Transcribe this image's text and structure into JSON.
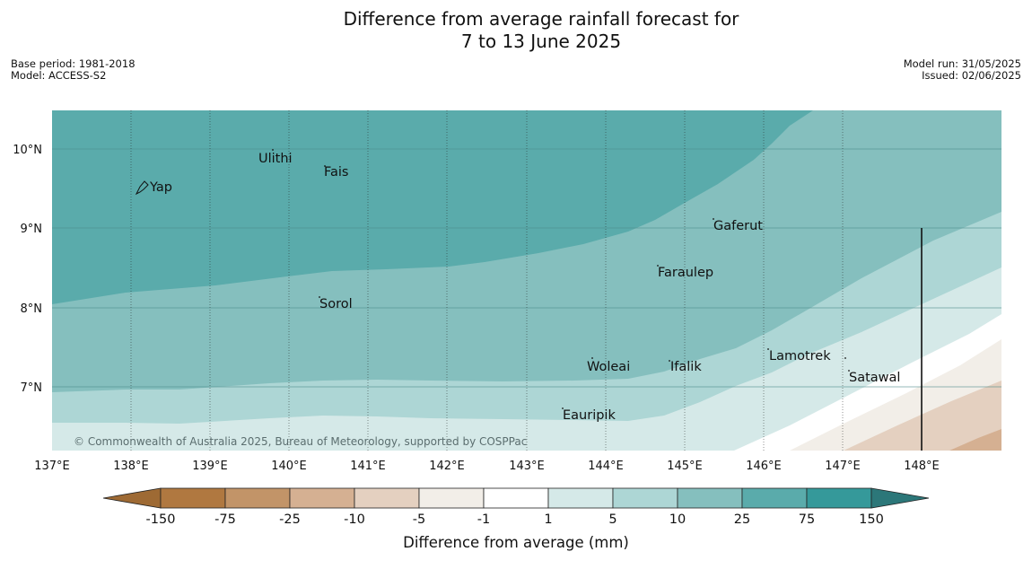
{
  "title": {
    "line1": "Difference from average rainfall forecast for",
    "line2": "7 to 13 June 2025"
  },
  "meta_left": {
    "base_period": "Base period: 1981-2018",
    "model": "Model: ACCESS-S2"
  },
  "meta_right": {
    "model_run": "Model run: 31/05/2025",
    "issued": "Issued: 02/06/2025"
  },
  "map": {
    "lon_labels": [
      "137°E",
      "138°E",
      "139°E",
      "140°E",
      "141°E",
      "142°E",
      "143°E",
      "144°E",
      "145°E",
      "146°E",
      "147°E",
      "148°E"
    ],
    "lat_labels": [
      "10°N",
      "9°N",
      "8°N",
      "7°N"
    ],
    "places": [
      {
        "name": "Yap"
      },
      {
        "name": "Ulithi"
      },
      {
        "name": "Fais"
      },
      {
        "name": "Gaferut"
      },
      {
        "name": "Faraulep"
      },
      {
        "name": "Sorol"
      },
      {
        "name": "Woleai"
      },
      {
        "name": "Ifalik"
      },
      {
        "name": "Lamotrek"
      },
      {
        "name": "Satawal"
      },
      {
        "name": "Eauripik"
      }
    ],
    "copyright": "© Commonwealth of Australia 2025, Bureau of Meteorology, supported by COSPPac"
  },
  "colorbar": {
    "title": "Difference from average (mm)",
    "labels": [
      "-150",
      "-75",
      "-25",
      "-10",
      "-5",
      "-1",
      "1",
      "5",
      "10",
      "25",
      "75",
      "150"
    ],
    "colors": [
      "#b07840",
      "#c29468",
      "#d5b092",
      "#e4d0c0",
      "#f2eee8",
      "#ffffff",
      "#d5e9e8",
      "#add6d5",
      "#85bfbe",
      "#5aabab",
      "#35999a"
    ],
    "under_color": "#9e6a34",
    "over_color": "#2c7779"
  }
}
